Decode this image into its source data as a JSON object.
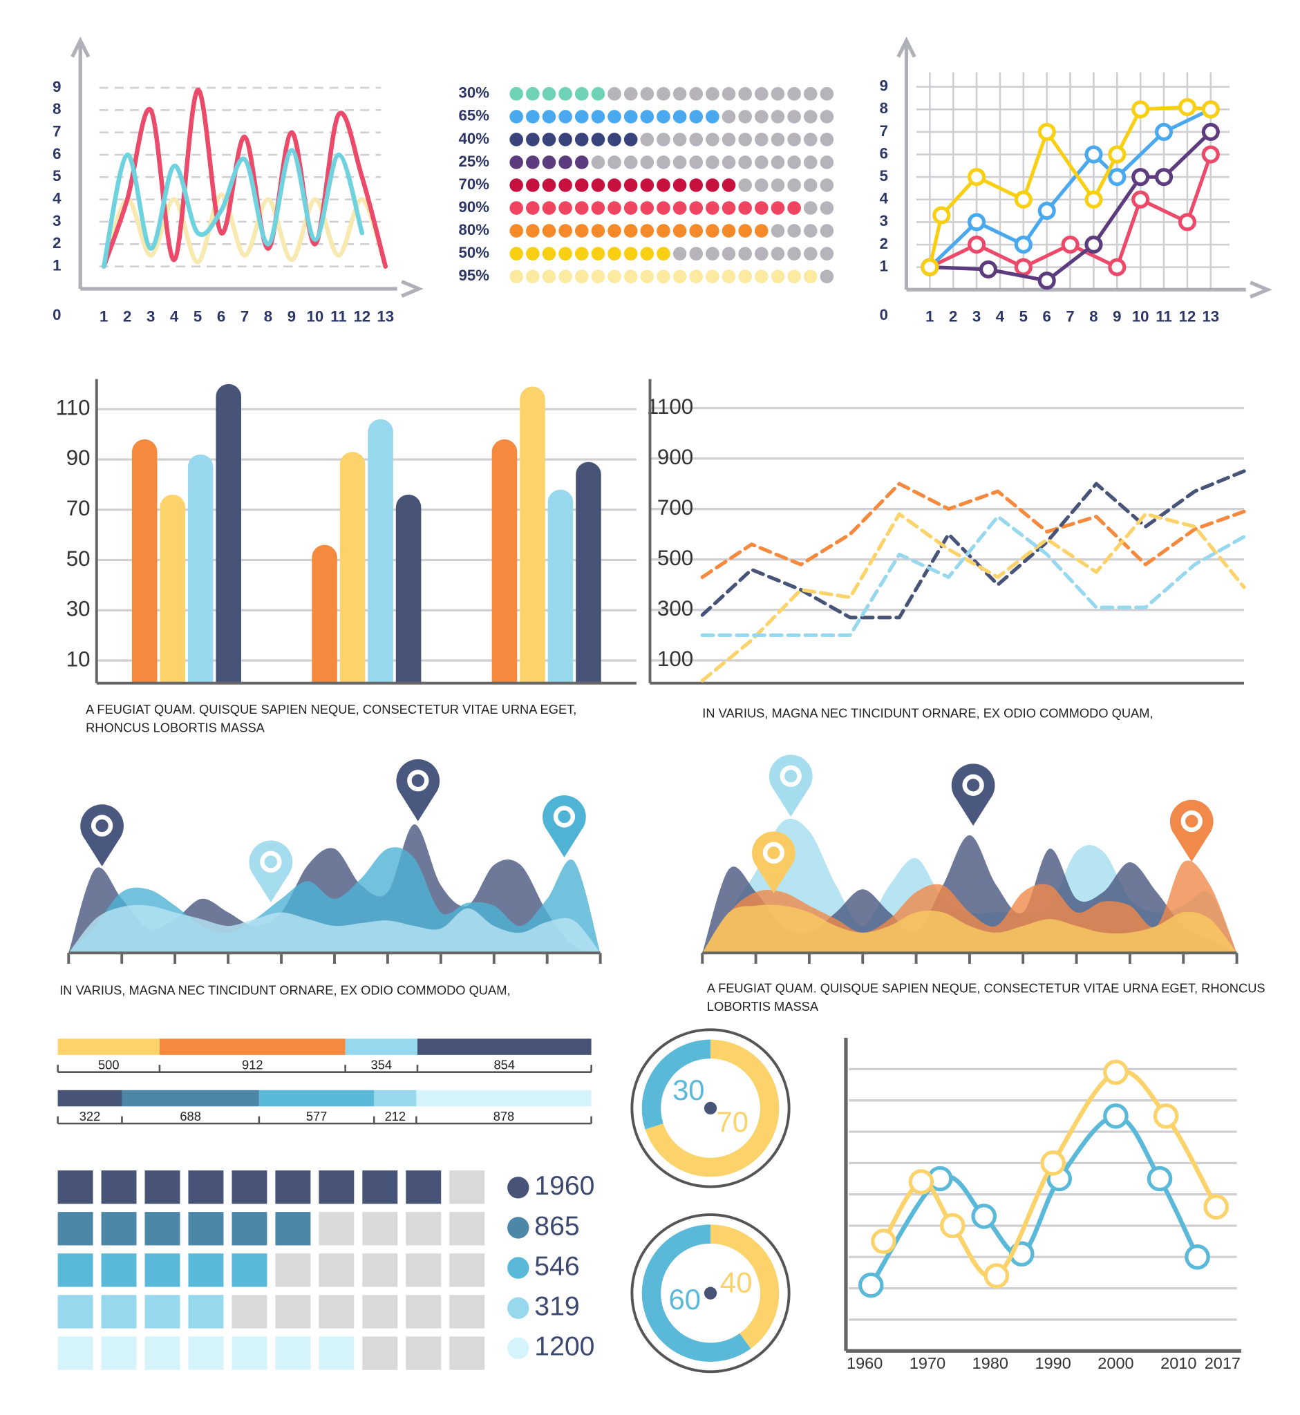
{
  "chart_data": [
    {
      "type": "line",
      "smooth": true,
      "grid": "dashed",
      "x": [
        1,
        2,
        3,
        4,
        5,
        6,
        7,
        8,
        9,
        10,
        11,
        12,
        13
      ],
      "xlim": [
        0,
        13.5
      ],
      "xticks": [
        1,
        2,
        3,
        4,
        5,
        6,
        7,
        8,
        9,
        10,
        11,
        12,
        13
      ],
      "ylim": [
        0,
        9.9
      ],
      "yticks": [
        0,
        1,
        2,
        3,
        4,
        5,
        6,
        7,
        8,
        9
      ],
      "series": [
        {
          "color": "#f7e9b0",
          "values": [
            1,
            4,
            1.5,
            4,
            1.2,
            4.2,
            1.5,
            4,
            1.3,
            4,
            1.5,
            4,
            1
          ]
        },
        {
          "color": "#ec4a6a",
          "values": [
            1,
            4,
            8,
            1.3,
            8.9,
            2.5,
            6.8,
            1.8,
            7,
            2,
            7.8,
            5,
            1
          ]
        },
        {
          "color": "#6fd3df",
          "values": [
            1,
            6,
            1.8,
            5.5,
            2.5,
            3.5,
            5.8,
            2,
            6.2,
            2.2,
            6,
            2.5,
            null
          ]
        }
      ]
    },
    {
      "type": "dot-matrix",
      "dots_per_row": 20,
      "max": 100,
      "empty_color": "#b6b4ba",
      "values": [
        30,
        65,
        40,
        25,
        70,
        90,
        80,
        50,
        95
      ],
      "value_labels": [
        "30%",
        "65%",
        "40%",
        "25%",
        "70%",
        "90%",
        "80%",
        "50%",
        "95%"
      ],
      "colors": [
        "#6fd1b5",
        "#4aa8ee",
        "#39437c",
        "#5c3b7e",
        "#c8103f",
        "#ef4560",
        "#f58a2a",
        "#f9cf14",
        "#fbeaa0"
      ]
    },
    {
      "type": "line",
      "markers": true,
      "grid": "both",
      "xlim": [
        0,
        14.5
      ],
      "xticks": [
        1,
        2,
        3,
        4,
        5,
        6,
        7,
        8,
        9,
        10,
        11,
        12,
        13
      ],
      "ylim": [
        0,
        9.85
      ],
      "yticks": [
        0,
        1,
        2,
        3,
        4,
        5,
        6,
        7,
        8,
        9
      ],
      "series": [
        {
          "color": "#ec4a6a",
          "x": [
            1,
            3,
            5,
            7,
            9,
            10,
            12,
            13
          ],
          "values": [
            1,
            2,
            1,
            2,
            1,
            4,
            3,
            6
          ]
        },
        {
          "color": "#5c3b7e",
          "x": [
            1,
            3.5,
            6,
            8,
            10,
            11,
            13
          ],
          "values": [
            1,
            0.9,
            0.4,
            2,
            5,
            5,
            7
          ]
        },
        {
          "color": "#4aa8ee",
          "x": [
            1,
            3,
            5,
            6,
            8,
            9,
            11,
            13
          ],
          "values": [
            1,
            3,
            2,
            3.5,
            6,
            5,
            7,
            8
          ]
        },
        {
          "color": "#f9cf14",
          "x": [
            1,
            1.5,
            3,
            5,
            6,
            8,
            9,
            10,
            12,
            13
          ],
          "values": [
            1,
            3.3,
            5,
            4,
            7,
            4,
            6,
            8,
            8.1,
            8
          ]
        }
      ]
    },
    {
      "type": "bar",
      "grid": true,
      "categories": [
        null,
        null,
        null
      ],
      "ylim": [
        1,
        122
      ],
      "yticks": [
        10,
        30,
        50,
        70,
        90,
        110
      ],
      "series": [
        {
          "color": "#f58a3e",
          "values": [
            98,
            56,
            98
          ]
        },
        {
          "color": "#fbd36a",
          "values": [
            76,
            93,
            119
          ]
        },
        {
          "color": "#97d8ee",
          "values": [
            92,
            106,
            78
          ]
        },
        {
          "color": "#475478",
          "values": [
            120,
            76,
            89
          ]
        }
      ],
      "caption": "A FEUGIAT QUAM. QUISQUE SAPIEN NEQUE, CONSECTETUR VITAE URNA EGET, RHONCUS LOBORTIS MASSA"
    },
    {
      "type": "line",
      "dashed": true,
      "grid": "solid",
      "x": [
        0,
        1,
        2,
        3,
        4,
        5,
        6,
        7,
        8,
        9,
        10,
        11
      ],
      "xlim": [
        0,
        11
      ],
      "ylim": [
        10,
        1215
      ],
      "yticks": [
        100,
        300,
        500,
        700,
        900,
        1100
      ],
      "series": [
        {
          "color": "#f58a3e",
          "values": [
            430,
            560,
            480,
            600,
            800,
            700,
            770,
            610,
            670,
            480,
            620,
            690
          ]
        },
        {
          "color": "#475478",
          "values": [
            280,
            460,
            380,
            270,
            270,
            600,
            400,
            570,
            800,
            630,
            770,
            850
          ]
        },
        {
          "color": "#fbd36a",
          "values": [
            20,
            180,
            380,
            350,
            680,
            540,
            430,
            580,
            450,
            680,
            630,
            390
          ]
        },
        {
          "color": "#97d8ee",
          "values": [
            200,
            200,
            200,
            200,
            520,
            430,
            670,
            520,
            310,
            310,
            480,
            590
          ]
        }
      ],
      "caption": "IN VARIUS, MAGNA NEC TINCIDUNT ORNARE, EX ODIO COMMODO QUAM,"
    },
    {
      "type": "area",
      "x": [
        0,
        0.5,
        1,
        1.5,
        2,
        2.5,
        3,
        3.5,
        4,
        4.5,
        5,
        5.5,
        6,
        6.5,
        7,
        7.5,
        8,
        8.5,
        9,
        9.5,
        10
      ],
      "xlim": [
        0,
        10
      ],
      "xticks": [
        0,
        1,
        2,
        3,
        4,
        5,
        6,
        7,
        8,
        9,
        10
      ],
      "ylim": [
        0,
        10
      ],
      "series": [
        {
          "color": "#4a587f",
          "values": [
            0,
            6.2,
            4,
            1.8,
            2.5,
            4,
            3,
            2,
            3,
            6.5,
            7.7,
            5,
            4.5,
            9.5,
            5,
            3.5,
            6.5,
            6.5,
            3,
            0.5,
            0
          ]
        },
        {
          "color": "#4fb3d6",
          "values": [
            0,
            2,
            4.5,
            4.7,
            3.5,
            2,
            1.5,
            2.5,
            4,
            5.3,
            4,
            5.5,
            7.7,
            7,
            3,
            3.7,
            3.5,
            2,
            4,
            6.8,
            0
          ]
        },
        {
          "color": "#b7e4f2",
          "values": [
            0,
            2.5,
            3.4,
            3.5,
            3,
            2.5,
            2,
            2.5,
            3,
            2.5,
            2,
            2.2,
            2.4,
            2,
            1.8,
            3.3,
            2,
            1.5,
            2.3,
            2.4,
            0
          ]
        }
      ],
      "caption": "IN VARIUS, MAGNA NEC TINCIDUNT ORNARE, EX ODIO COMMODO QUAM,"
    },
    {
      "type": "area",
      "x": [
        0,
        0.5,
        1,
        1.5,
        2,
        2.5,
        3,
        3.5,
        4,
        4.5,
        5,
        5.5,
        6,
        6.5,
        7,
        7.5,
        8,
        8.5,
        9,
        9.5,
        10
      ],
      "xlim": [
        0,
        10
      ],
      "xticks": [
        0,
        1,
        2,
        3,
        4,
        5,
        6,
        7,
        8,
        9,
        10
      ],
      "ylim": [
        0,
        10
      ],
      "series": [
        {
          "color": "#a5ddef",
          "values": [
            0,
            3,
            6,
            9.7,
            9,
            5,
            2,
            5,
            7,
            4,
            3,
            3,
            3,
            3.5,
            7.5,
            7.5,
            4,
            3,
            3.5,
            4.4,
            0
          ]
        },
        {
          "color": "#4a587f",
          "values": [
            0,
            6.2,
            4.5,
            2,
            1.5,
            3,
            4.7,
            3,
            1.5,
            5,
            8.7,
            5,
            3,
            7.7,
            4,
            4.5,
            6.7,
            4.5,
            2,
            1,
            0
          ]
        },
        {
          "color": "#f0894a",
          "values": [
            0,
            3,
            4.5,
            4.5,
            3.5,
            2.5,
            1.5,
            2.5,
            4.5,
            5,
            3,
            2,
            4.5,
            5,
            3,
            3.8,
            3.5,
            2,
            6.7,
            5,
            0
          ]
        },
        {
          "color": "#f9cb62",
          "values": [
            0,
            3,
            3.5,
            3.5,
            3,
            2,
            1.5,
            2,
            3,
            3,
            2,
            1.5,
            2,
            2.5,
            2,
            1.5,
            1.5,
            2,
            3,
            2.5,
            0
          ]
        }
      ],
      "caption": "A FEUGIAT QUAM. QUISQUE SAPIEN NEQUE, CONSECTETUR VITAE URNA EGET, RHONCUS LOBORTIS MASSA"
    },
    {
      "type": "stacked-bar",
      "bars": [
        {
          "values": [
            500,
            912,
            354,
            854
          ],
          "colors": [
            "#fbd36a",
            "#f58a3e",
            "#97d8ee",
            "#475478"
          ]
        },
        {
          "values": [
            322,
            688,
            577,
            212,
            878
          ],
          "colors": [
            "#475478",
            "#4d87a8",
            "#5ab8d9",
            "#97d8ee",
            "#d4f3fb"
          ]
        }
      ]
    },
    {
      "type": "waffle",
      "columns": 10,
      "empty_color": "#d9d9d9",
      "values": [
        9,
        6,
        5,
        4,
        7
      ],
      "legend_values": [
        1960,
        865,
        546,
        319,
        1200
      ],
      "colors": [
        "#475478",
        "#4d87a8",
        "#5ab8d9",
        "#97d8ee",
        "#d4f3fb"
      ]
    },
    {
      "type": "pie",
      "donut": true,
      "values": [
        70,
        30
      ],
      "colors": [
        "#fbd36a",
        "#5ab8d9"
      ]
    },
    {
      "type": "pie",
      "donut": true,
      "values": [
        40,
        60
      ],
      "colors": [
        "#fbd36a",
        "#5ab8d9"
      ]
    },
    {
      "type": "line",
      "smooth": true,
      "markers": true,
      "grid": "solid",
      "y_labels": false,
      "xlim": [
        1957,
        2020
      ],
      "xticks": [
        1960,
        1970,
        1980,
        1990,
        2000,
        2010,
        2017
      ],
      "ylim": [
        0,
        10
      ],
      "yticks": [
        1,
        2,
        3,
        4,
        5,
        6,
        7,
        8,
        9
      ],
      "series": [
        {
          "color": "#5ab8d9",
          "x": [
            1961,
            1972,
            1979,
            1985,
            1991,
            2000,
            2007,
            2013
          ],
          "values": [
            2.1,
            5.5,
            4.3,
            3.1,
            5.5,
            7.5,
            5.5,
            3
          ]
        },
        {
          "color": "#fbd36a",
          "x": [
            1963,
            1969,
            1974,
            1981,
            1990,
            2000,
            2008,
            2016
          ],
          "values": [
            3.5,
            5.4,
            4,
            2.4,
            6,
            8.9,
            7.5,
            4.6
          ]
        }
      ]
    }
  ]
}
